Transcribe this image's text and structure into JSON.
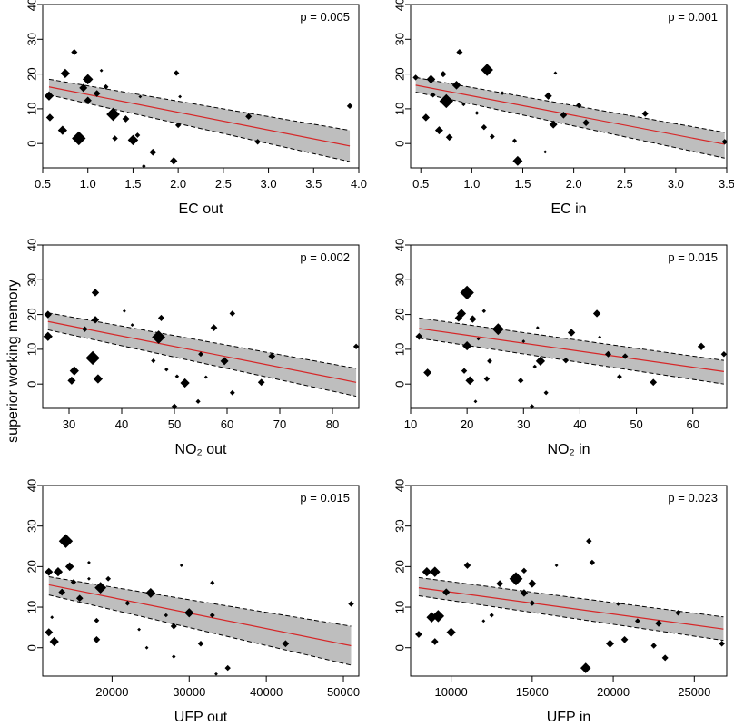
{
  "ylabel": "superior working memory",
  "chart_data": [
    {
      "type": "scatter",
      "xlabel": "EC out",
      "pvalue": "p = 0.005",
      "xlim": [
        0.5,
        4.0
      ],
      "ylim": [
        -7,
        40
      ],
      "xticks": [
        "0.5",
        "1.0",
        "1.5",
        "2.0",
        "2.5",
        "3.0",
        "3.5",
        "4.0"
      ],
      "yticks": [
        "0",
        "10",
        "20",
        "30",
        "40"
      ],
      "fit": {
        "x": [
          0.57,
          3.9
        ],
        "y": [
          16.3,
          -0.7
        ]
      },
      "band": {
        "upper": [
          18.5,
          3.8
        ],
        "lower": [
          14.0,
          -5.2
        ]
      },
      "points": [
        {
          "x": 0.57,
          "y": 13.7,
          "s": 1.6
        },
        {
          "x": 0.58,
          "y": 7.5,
          "s": 1.3
        },
        {
          "x": 0.72,
          "y": 3.8,
          "s": 1.6
        },
        {
          "x": 0.75,
          "y": 20.2,
          "s": 1.6
        },
        {
          "x": 0.85,
          "y": 26.3,
          "s": 1.1
        },
        {
          "x": 0.9,
          "y": 1.5,
          "s": 2.4
        },
        {
          "x": 0.95,
          "y": 16.0,
          "s": 1.4
        },
        {
          "x": 1.0,
          "y": 18.5,
          "s": 1.8
        },
        {
          "x": 1.0,
          "y": 12.4,
          "s": 1.3
        },
        {
          "x": 1.1,
          "y": 14.4,
          "s": 1.2
        },
        {
          "x": 1.15,
          "y": 21.0,
          "s": 0.6
        },
        {
          "x": 1.2,
          "y": 16.3,
          "s": 0.9
        },
        {
          "x": 1.28,
          "y": 8.4,
          "s": 2.3
        },
        {
          "x": 1.3,
          "y": 1.5,
          "s": 1.0
        },
        {
          "x": 1.42,
          "y": 7.1,
          "s": 1.2
        },
        {
          "x": 1.5,
          "y": 1.0,
          "s": 1.8
        },
        {
          "x": 1.55,
          "y": 2.4,
          "s": 0.9
        },
        {
          "x": 1.58,
          "y": 13.5,
          "s": 0.6
        },
        {
          "x": 1.62,
          "y": -6.5,
          "s": 0.7
        },
        {
          "x": 1.72,
          "y": -2.5,
          "s": 1.2
        },
        {
          "x": 1.95,
          "y": -5.0,
          "s": 1.3
        },
        {
          "x": 1.98,
          "y": 20.3,
          "s": 1.0
        },
        {
          "x": 2.0,
          "y": 5.3,
          "s": 1.0
        },
        {
          "x": 2.02,
          "y": 13.5,
          "s": 0.6
        },
        {
          "x": 2.78,
          "y": 7.8,
          "s": 1.1
        },
        {
          "x": 2.88,
          "y": 0.5,
          "s": 1.0
        },
        {
          "x": 3.9,
          "y": 10.8,
          "s": 1.0
        }
      ]
    },
    {
      "type": "scatter",
      "xlabel": "EC in",
      "pvalue": "p = 0.001",
      "xlim": [
        0.4,
        3.5
      ],
      "ylim": [
        -7,
        40
      ],
      "xticks": [
        "0.5",
        "1.0",
        "1.5",
        "2.0",
        "2.5",
        "3.0",
        "3.5"
      ],
      "yticks": [
        "0",
        "10",
        "20",
        "30",
        "40"
      ],
      "fit": {
        "x": [
          0.45,
          3.48
        ],
        "y": [
          16.8,
          -0.2
        ]
      },
      "band": {
        "upper": [
          19.0,
          3.2
        ],
        "lower": [
          14.8,
          -4.2
        ]
      },
      "points": [
        {
          "x": 0.45,
          "y": 19.0,
          "s": 1.0
        },
        {
          "x": 0.55,
          "y": 7.5,
          "s": 1.3
        },
        {
          "x": 0.6,
          "y": 18.5,
          "s": 1.5
        },
        {
          "x": 0.62,
          "y": 14.0,
          "s": 0.9
        },
        {
          "x": 0.68,
          "y": 3.8,
          "s": 1.4
        },
        {
          "x": 0.72,
          "y": 20.0,
          "s": 1.1
        },
        {
          "x": 0.75,
          "y": 12.2,
          "s": 2.4
        },
        {
          "x": 0.78,
          "y": 1.8,
          "s": 1.2
        },
        {
          "x": 0.85,
          "y": 16.8,
          "s": 1.5
        },
        {
          "x": 0.88,
          "y": 26.3,
          "s": 1.1
        },
        {
          "x": 0.92,
          "y": 11.3,
          "s": 0.7
        },
        {
          "x": 1.05,
          "y": 8.8,
          "s": 0.7
        },
        {
          "x": 1.12,
          "y": 4.7,
          "s": 1.0
        },
        {
          "x": 1.15,
          "y": 21.2,
          "s": 2.1
        },
        {
          "x": 1.2,
          "y": 2.0,
          "s": 0.9
        },
        {
          "x": 1.3,
          "y": 14.5,
          "s": 0.7
        },
        {
          "x": 1.42,
          "y": 0.8,
          "s": 0.8
        },
        {
          "x": 1.45,
          "y": -5.0,
          "s": 1.7
        },
        {
          "x": 1.72,
          "y": -2.4,
          "s": 0.6
        },
        {
          "x": 1.75,
          "y": 13.7,
          "s": 1.3
        },
        {
          "x": 1.8,
          "y": 5.5,
          "s": 1.4
        },
        {
          "x": 1.82,
          "y": 20.3,
          "s": 0.6
        },
        {
          "x": 1.9,
          "y": 8.2,
          "s": 1.2
        },
        {
          "x": 2.05,
          "y": 11.0,
          "s": 1.0
        },
        {
          "x": 2.12,
          "y": 6.0,
          "s": 1.2
        },
        {
          "x": 2.7,
          "y": 8.6,
          "s": 1.1
        },
        {
          "x": 3.48,
          "y": 0.5,
          "s": 1.0
        }
      ]
    },
    {
      "type": "scatter",
      "xlabel": "NO₂ out",
      "pvalue": "p = 0.002",
      "xlim": [
        25,
        85
      ],
      "ylim": [
        -7,
        40
      ],
      "xticks": [
        "30",
        "40",
        "50",
        "60",
        "70",
        "80"
      ],
      "yticks": [
        "0",
        "10",
        "20",
        "30",
        "40"
      ],
      "fit": {
        "x": [
          26,
          84.5
        ],
        "y": [
          18.0,
          0.5
        ]
      },
      "band": {
        "upper": [
          20.5,
          4.5
        ],
        "lower": [
          15.6,
          -3.5
        ]
      },
      "points": [
        {
          "x": 26,
          "y": 20.0,
          "s": 1.3
        },
        {
          "x": 26,
          "y": 13.7,
          "s": 1.6
        },
        {
          "x": 30.5,
          "y": 1.0,
          "s": 1.4
        },
        {
          "x": 31,
          "y": 3.8,
          "s": 1.6
        },
        {
          "x": 33,
          "y": 15.8,
          "s": 1.0
        },
        {
          "x": 34.5,
          "y": 7.5,
          "s": 2.4
        },
        {
          "x": 35,
          "y": 26.3,
          "s": 1.3
        },
        {
          "x": 35,
          "y": 18.5,
          "s": 1.3
        },
        {
          "x": 35.5,
          "y": 1.5,
          "s": 1.6
        },
        {
          "x": 40.5,
          "y": 21.0,
          "s": 0.6
        },
        {
          "x": 42,
          "y": 17.0,
          "s": 0.6
        },
        {
          "x": 46,
          "y": 6.7,
          "s": 0.8
        },
        {
          "x": 47,
          "y": 13.5,
          "s": 2.3
        },
        {
          "x": 47.5,
          "y": 19.0,
          "s": 1.1
        },
        {
          "x": 48.5,
          "y": 4.2,
          "s": 0.7
        },
        {
          "x": 50,
          "y": -6.5,
          "s": 1.1
        },
        {
          "x": 50.5,
          "y": 2.2,
          "s": 0.7
        },
        {
          "x": 52,
          "y": 0.3,
          "s": 1.6
        },
        {
          "x": 54.5,
          "y": -5.0,
          "s": 0.8
        },
        {
          "x": 55,
          "y": 8.6,
          "s": 0.9
        },
        {
          "x": 56,
          "y": 2.0,
          "s": 0.6
        },
        {
          "x": 57.5,
          "y": 16.2,
          "s": 1.2
        },
        {
          "x": 59.5,
          "y": 6.6,
          "s": 1.4
        },
        {
          "x": 61,
          "y": 20.3,
          "s": 1.0
        },
        {
          "x": 61,
          "y": -2.5,
          "s": 0.9
        },
        {
          "x": 66.5,
          "y": 0.5,
          "s": 1.2
        },
        {
          "x": 68.5,
          "y": 8.0,
          "s": 1.2
        },
        {
          "x": 84.5,
          "y": 10.8,
          "s": 1.0
        }
      ]
    },
    {
      "type": "scatter",
      "xlabel": "NO₂ in",
      "pvalue": "p = 0.015",
      "xlim": [
        10,
        66
      ],
      "ylim": [
        -7,
        40
      ],
      "xticks": [
        "10",
        "20",
        "30",
        "40",
        "50",
        "60"
      ],
      "yticks": [
        "0",
        "10",
        "20",
        "30",
        "40"
      ],
      "fit": {
        "x": [
          11.5,
          65.5
        ],
        "y": [
          16.0,
          3.6
        ]
      },
      "band": {
        "upper": [
          19.0,
          6.8
        ],
        "lower": [
          13.2,
          0.0
        ]
      },
      "points": [
        {
          "x": 11.5,
          "y": 13.7,
          "s": 1.2
        },
        {
          "x": 13,
          "y": 3.3,
          "s": 1.4
        },
        {
          "x": 18.5,
          "y": 19.0,
          "s": 1.3
        },
        {
          "x": 19,
          "y": 20.3,
          "s": 1.6
        },
        {
          "x": 19.5,
          "y": 3.8,
          "s": 1.0
        },
        {
          "x": 20,
          "y": 26.3,
          "s": 2.4
        },
        {
          "x": 20,
          "y": 11.0,
          "s": 1.6
        },
        {
          "x": 20.5,
          "y": 1.0,
          "s": 1.5
        },
        {
          "x": 21,
          "y": 18.7,
          "s": 1.3
        },
        {
          "x": 21.5,
          "y": -5.0,
          "s": 0.6
        },
        {
          "x": 22,
          "y": 13.0,
          "s": 0.6
        },
        {
          "x": 23,
          "y": 21.0,
          "s": 0.7
        },
        {
          "x": 23.5,
          "y": 1.5,
          "s": 1.0
        },
        {
          "x": 24,
          "y": 6.6,
          "s": 0.9
        },
        {
          "x": 25.5,
          "y": 15.8,
          "s": 2.0
        },
        {
          "x": 29.5,
          "y": 1.0,
          "s": 1.0
        },
        {
          "x": 30,
          "y": 12.3,
          "s": 0.6
        },
        {
          "x": 31.5,
          "y": -6.5,
          "s": 0.9
        },
        {
          "x": 32,
          "y": 5.0,
          "s": 0.7
        },
        {
          "x": 32.5,
          "y": 16.2,
          "s": 0.6
        },
        {
          "x": 33,
          "y": 6.6,
          "s": 1.6
        },
        {
          "x": 34,
          "y": -2.5,
          "s": 0.8
        },
        {
          "x": 37.5,
          "y": 6.8,
          "s": 1.0
        },
        {
          "x": 38.5,
          "y": 14.8,
          "s": 1.3
        },
        {
          "x": 43,
          "y": 20.3,
          "s": 1.3
        },
        {
          "x": 43.5,
          "y": 13.5,
          "s": 0.6
        },
        {
          "x": 45,
          "y": 8.6,
          "s": 1.1
        },
        {
          "x": 47,
          "y": 2.1,
          "s": 0.9
        },
        {
          "x": 48,
          "y": 8.0,
          "s": 1.0
        },
        {
          "x": 53,
          "y": 0.5,
          "s": 1.2
        },
        {
          "x": 61.5,
          "y": 10.8,
          "s": 1.3
        },
        {
          "x": 65.5,
          "y": 8.6,
          "s": 1.0
        }
      ]
    },
    {
      "type": "scatter",
      "xlabel": "UFP out",
      "pvalue": "p = 0.015",
      "xlim": [
        11000,
        52000
      ],
      "ylim": [
        -7,
        40
      ],
      "xticks": [
        "20000",
        "30000",
        "40000",
        "50000"
      ],
      "yticks": [
        "0",
        "10",
        "20",
        "30",
        "40"
      ],
      "fit": {
        "x": [
          11800,
          51000
        ],
        "y": [
          15.5,
          0.5
        ]
      },
      "band": {
        "upper": [
          17.5,
          5.3
        ],
        "lower": [
          13.0,
          -4.3
        ]
      },
      "points": [
        {
          "x": 11800,
          "y": 18.7,
          "s": 1.4
        },
        {
          "x": 11800,
          "y": 3.8,
          "s": 1.4
        },
        {
          "x": 12200,
          "y": 7.5,
          "s": 0.6
        },
        {
          "x": 12500,
          "y": 1.5,
          "s": 1.6
        },
        {
          "x": 13000,
          "y": 18.7,
          "s": 1.6
        },
        {
          "x": 13500,
          "y": 13.7,
          "s": 1.2
        },
        {
          "x": 14000,
          "y": 26.3,
          "s": 2.4
        },
        {
          "x": 14500,
          "y": 20.0,
          "s": 1.5
        },
        {
          "x": 15000,
          "y": 16.2,
          "s": 1.0
        },
        {
          "x": 15800,
          "y": 12.2,
          "s": 1.2
        },
        {
          "x": 17000,
          "y": 21.0,
          "s": 0.6
        },
        {
          "x": 17000,
          "y": 17.0,
          "s": 0.6
        },
        {
          "x": 18000,
          "y": 2.0,
          "s": 1.2
        },
        {
          "x": 18500,
          "y": 14.8,
          "s": 2.0
        },
        {
          "x": 18000,
          "y": 6.7,
          "s": 0.9
        },
        {
          "x": 19500,
          "y": 17.0,
          "s": 0.9
        },
        {
          "x": 22000,
          "y": 11.0,
          "s": 0.9
        },
        {
          "x": 23500,
          "y": 4.5,
          "s": 0.6
        },
        {
          "x": 24500,
          "y": 0.0,
          "s": 0.6
        },
        {
          "x": 25000,
          "y": 13.5,
          "s": 1.7
        },
        {
          "x": 27000,
          "y": 8.0,
          "s": 0.7
        },
        {
          "x": 28000,
          "y": 5.3,
          "s": 1.1
        },
        {
          "x": 28000,
          "y": -2.2,
          "s": 0.7
        },
        {
          "x": 29000,
          "y": 20.3,
          "s": 0.6
        },
        {
          "x": 30000,
          "y": 8.6,
          "s": 1.6
        },
        {
          "x": 31500,
          "y": 1.0,
          "s": 1.0
        },
        {
          "x": 33000,
          "y": 8.0,
          "s": 0.9
        },
        {
          "x": 33000,
          "y": 16.0,
          "s": 0.8
        },
        {
          "x": 33500,
          "y": -6.5,
          "s": 0.6
        },
        {
          "x": 35000,
          "y": -5.0,
          "s": 1.0
        },
        {
          "x": 42500,
          "y": 1.0,
          "s": 1.2
        },
        {
          "x": 51000,
          "y": 10.8,
          "s": 1.0
        }
      ]
    },
    {
      "type": "scatter",
      "xlabel": "UFP in",
      "pvalue": "p = 0.023",
      "xlim": [
        7500,
        27000
      ],
      "ylim": [
        -7,
        40
      ],
      "xticks": [
        "10000",
        "15000",
        "20000",
        "25000"
      ],
      "yticks": [
        "0",
        "10",
        "20",
        "30",
        "40"
      ],
      "fit": {
        "x": [
          8000,
          26800
        ],
        "y": [
          14.8,
          4.6
        ]
      },
      "band": {
        "upper": [
          17.3,
          7.6
        ],
        "lower": [
          12.8,
          1.8
        ]
      },
      "points": [
        {
          "x": 8000,
          "y": 3.3,
          "s": 1.2
        },
        {
          "x": 8500,
          "y": 18.7,
          "s": 1.6
        },
        {
          "x": 8800,
          "y": 7.5,
          "s": 1.8
        },
        {
          "x": 9000,
          "y": 18.7,
          "s": 1.8
        },
        {
          "x": 9000,
          "y": 1.5,
          "s": 1.2
        },
        {
          "x": 9200,
          "y": 7.8,
          "s": 2.1
        },
        {
          "x": 9700,
          "y": 13.7,
          "s": 1.3
        },
        {
          "x": 10000,
          "y": 3.8,
          "s": 1.6
        },
        {
          "x": 11000,
          "y": 20.3,
          "s": 1.2
        },
        {
          "x": 12000,
          "y": 6.6,
          "s": 0.6
        },
        {
          "x": 12500,
          "y": 8.0,
          "s": 0.8
        },
        {
          "x": 13000,
          "y": 15.8,
          "s": 1.2
        },
        {
          "x": 14000,
          "y": 17.0,
          "s": 2.3
        },
        {
          "x": 14500,
          "y": 19.0,
          "s": 1.0
        },
        {
          "x": 14500,
          "y": 13.5,
          "s": 1.3
        },
        {
          "x": 15000,
          "y": 15.8,
          "s": 1.4
        },
        {
          "x": 15000,
          "y": 11.0,
          "s": 1.0
        },
        {
          "x": 16500,
          "y": 20.3,
          "s": 0.6
        },
        {
          "x": 18300,
          "y": -5.0,
          "s": 1.8
        },
        {
          "x": 18500,
          "y": 26.3,
          "s": 1.0
        },
        {
          "x": 18700,
          "y": 21.0,
          "s": 1.0
        },
        {
          "x": 19800,
          "y": 1.0,
          "s": 1.4
        },
        {
          "x": 20300,
          "y": 10.8,
          "s": 0.7
        },
        {
          "x": 20700,
          "y": 2.0,
          "s": 1.2
        },
        {
          "x": 21500,
          "y": 6.6,
          "s": 0.9
        },
        {
          "x": 22500,
          "y": 0.5,
          "s": 1.0
        },
        {
          "x": 22800,
          "y": 6.0,
          "s": 1.2
        },
        {
          "x": 23200,
          "y": -2.5,
          "s": 1.1
        },
        {
          "x": 24000,
          "y": 8.6,
          "s": 1.0
        },
        {
          "x": 26700,
          "y": 1.0,
          "s": 1.0
        }
      ]
    }
  ]
}
